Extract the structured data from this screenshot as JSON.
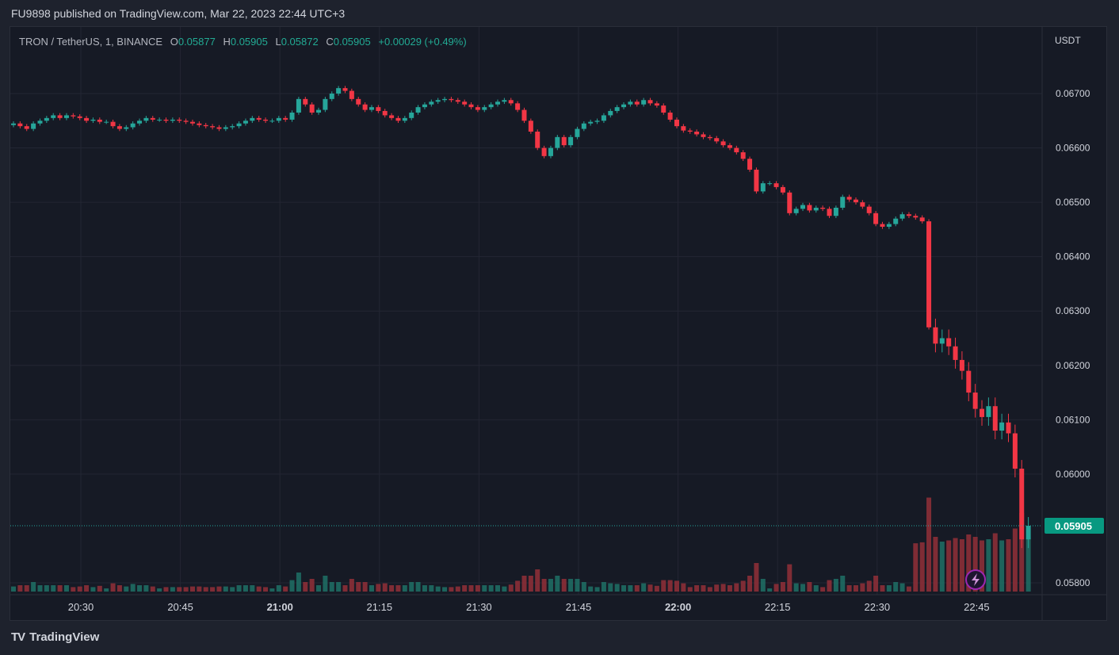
{
  "header": {
    "published": "FU9898 published on TradingView.com, Mar 22, 2023 22:44 UTC+3"
  },
  "legend": {
    "symbol": "TRON / TetherUS, 1, BINANCE",
    "o_label": "O",
    "o": "0.05877",
    "h_label": "H",
    "h": "0.05905",
    "l_label": "L",
    "l": "0.05872",
    "c_label": "C",
    "c": "0.05905",
    "change": "+0.00029 (+0.49%)"
  },
  "footer": {
    "logo": "TV",
    "brand": "TradingView"
  },
  "chart_data": {
    "type": "candlestick",
    "title": "TRON / TetherUS, 1, BINANCE",
    "currency_label": "USDT",
    "y_ticks": [
      "0.06700",
      "0.06600",
      "0.06500",
      "0.06400",
      "0.06300",
      "0.06200",
      "0.06100",
      "0.06000",
      "0.05800"
    ],
    "ylim": [
      0.0579,
      0.0678
    ],
    "x_ticks": [
      {
        "label": "20:30",
        "bold": false
      },
      {
        "label": "20:45",
        "bold": false
      },
      {
        "label": "21:00",
        "bold": true
      },
      {
        "label": "21:15",
        "bold": false
      },
      {
        "label": "21:30",
        "bold": false
      },
      {
        "label": "21:45",
        "bold": false
      },
      {
        "label": "22:00",
        "bold": true
      },
      {
        "label": "22:15",
        "bold": false
      },
      {
        "label": "22:30",
        "bold": false
      },
      {
        "label": "22:45",
        "bold": false
      }
    ],
    "x_start": "20:20",
    "x_end": "22:46",
    "last_price": "0.05905",
    "last_price_value": 0.05905,
    "colors": {
      "up": "#26a69a",
      "down": "#f23645",
      "up_vol": "#1e6b63",
      "down_vol": "#8b2f37",
      "grid": "#232633",
      "badge": "#089981"
    },
    "closes": [
      0.06645,
      0.0664,
      0.06635,
      0.06645,
      0.0665,
      0.06655,
      0.0666,
      0.06655,
      0.0666,
      0.06658,
      0.06655,
      0.0665,
      0.06652,
      0.06648,
      0.06648,
      0.0664,
      0.06635,
      0.06638,
      0.06645,
      0.0665,
      0.06655,
      0.06652,
      0.06652,
      0.0665,
      0.06652,
      0.0665,
      0.06648,
      0.06645,
      0.06642,
      0.0664,
      0.06638,
      0.06635,
      0.06638,
      0.0664,
      0.06645,
      0.0665,
      0.06655,
      0.06652,
      0.0665,
      0.0665,
      0.06655,
      0.06652,
      0.06665,
      0.0669,
      0.0668,
      0.06665,
      0.0667,
      0.0669,
      0.067,
      0.0671,
      0.06705,
      0.0669,
      0.0668,
      0.0667,
      0.06675,
      0.06668,
      0.0666,
      0.06655,
      0.0665,
      0.06655,
      0.06665,
      0.06675,
      0.0668,
      0.06685,
      0.06688,
      0.0669,
      0.06688,
      0.06685,
      0.0668,
      0.06675,
      0.0667,
      0.06675,
      0.0668,
      0.06685,
      0.06688,
      0.06682,
      0.0667,
      0.0665,
      0.0663,
      0.066,
      0.06585,
      0.066,
      0.0662,
      0.06605,
      0.0662,
      0.06635,
      0.06645,
      0.06648,
      0.0665,
      0.0666,
      0.06668,
      0.06675,
      0.0668,
      0.06685,
      0.0668,
      0.06688,
      0.06682,
      0.06678,
      0.06665,
      0.06652,
      0.0664,
      0.06632,
      0.0663,
      0.06625,
      0.0662,
      0.06618,
      0.06612,
      0.06605,
      0.066,
      0.06592,
      0.0658,
      0.0656,
      0.0652,
      0.06535,
      0.06535,
      0.06528,
      0.06518,
      0.0648,
      0.06488,
      0.06495,
      0.06485,
      0.0649,
      0.06488,
      0.06475,
      0.0649,
      0.0651,
      0.06505,
      0.065,
      0.06492,
      0.0648,
      0.0646,
      0.06455,
      0.0646,
      0.0647,
      0.06478,
      0.06475,
      0.06472,
      0.06465,
      0.0627,
      0.0624,
      0.0625,
      0.06235,
      0.0621,
      0.0619,
      0.0615,
      0.0612,
      0.06105,
      0.06125,
      0.0608,
      0.06095,
      0.06075,
      0.0601,
      0.0588,
      0.05905
    ]
  }
}
